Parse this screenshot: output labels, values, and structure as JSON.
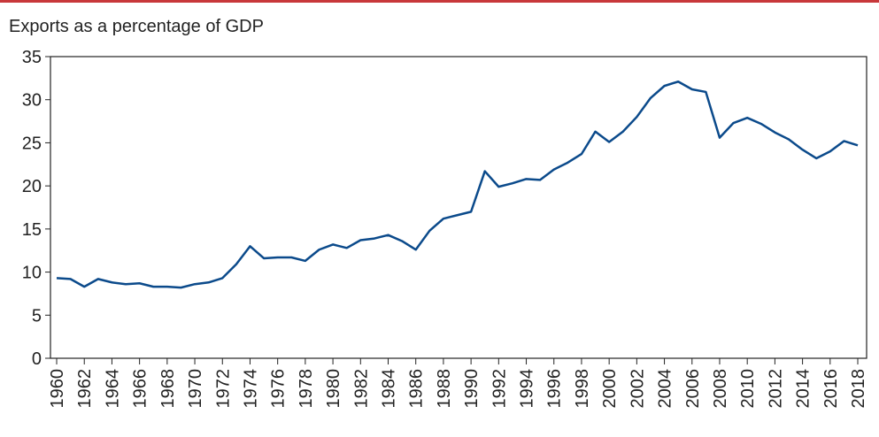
{
  "chart_data": {
    "type": "line",
    "title": "Exports as a percentage of GDP",
    "x": [
      1960,
      1961,
      1962,
      1963,
      1964,
      1965,
      1966,
      1967,
      1968,
      1969,
      1970,
      1971,
      1972,
      1973,
      1974,
      1975,
      1976,
      1977,
      1978,
      1979,
      1980,
      1981,
      1982,
      1983,
      1984,
      1985,
      1986,
      1987,
      1988,
      1989,
      1990,
      1991,
      1992,
      1993,
      1994,
      1995,
      1996,
      1997,
      1998,
      1999,
      2000,
      2001,
      2002,
      2003,
      2004,
      2005,
      2006,
      2007,
      2008,
      2009,
      2010,
      2011,
      2012,
      2013,
      2014,
      2015,
      2016,
      2017,
      2018
    ],
    "series": [
      {
        "color": "#0b4a8b",
        "values": [
          9.3,
          9.2,
          8.3,
          9.2,
          8.8,
          8.6,
          8.7,
          8.3,
          8.3,
          8.2,
          8.6,
          8.8,
          9.3,
          10.9,
          13.0,
          11.6,
          11.7,
          11.7,
          11.3,
          12.6,
          13.2,
          12.8,
          13.7,
          13.9,
          14.3,
          13.6,
          12.6,
          14.8,
          16.2,
          16.6,
          17.0,
          21.7,
          19.9,
          20.3,
          20.8,
          20.7,
          21.9,
          22.7,
          23.7,
          26.3,
          25.1,
          26.3,
          28.0,
          30.2,
          31.6,
          32.1,
          31.2,
          30.9,
          25.6,
          27.3,
          27.9,
          27.2,
          26.2,
          25.4,
          24.2,
          23.2,
          24.0,
          25.2,
          24.7
        ]
      }
    ],
    "xlim": [
      1959.55,
      2018.64
    ],
    "xticks": [
      1960,
      1962,
      1964,
      1966,
      1968,
      1970,
      1972,
      1974,
      1976,
      1978,
      1980,
      1982,
      1984,
      1986,
      1988,
      1990,
      1992,
      1994,
      1996,
      1998,
      2000,
      2002,
      2004,
      2006,
      2008,
      2010,
      2012,
      2014,
      2016,
      2018
    ],
    "ylim": [
      0,
      35
    ],
    "yticks": [
      0,
      5,
      10,
      15,
      20,
      25,
      30,
      35
    ],
    "grid": false
  }
}
